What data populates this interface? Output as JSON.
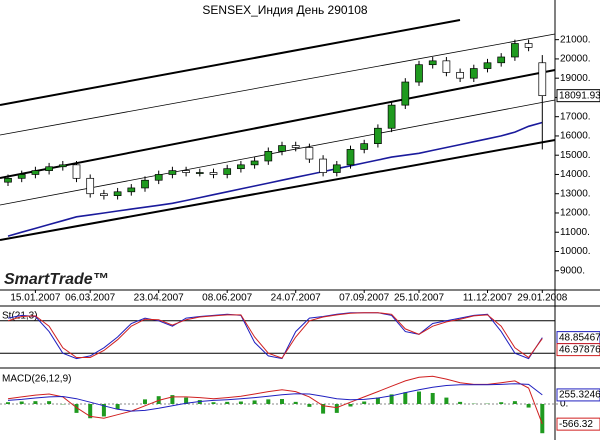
{
  "chart_data": [
    {
      "type": "candlestick",
      "title": "SENSEX_Индия День 290108",
      "logo": "SmartTrade™",
      "categories": [
        null,
        null,
        "15.01.2007",
        null,
        null,
        null,
        "06.03.2007",
        null,
        null,
        null,
        null,
        "23.04.2007",
        null,
        null,
        null,
        null,
        "08.06.2007",
        null,
        null,
        null,
        null,
        "24.07.2007",
        null,
        null,
        null,
        null,
        "07.09.2007",
        null,
        null,
        null,
        "25.10.2007",
        null,
        null,
        null,
        null,
        "11.12.2007",
        null,
        null,
        null,
        "29.01.2008"
      ],
      "open": [
        13600,
        13800,
        14000,
        14200,
        14400,
        14500,
        13800,
        13000,
        12900,
        13100,
        13300,
        13700,
        14000,
        14200,
        14100,
        14100,
        14000,
        14300,
        14500,
        14700,
        15200,
        15500,
        15400,
        14800,
        14100,
        14500,
        15300,
        15600,
        16400,
        17600,
        18800,
        19700,
        19900,
        19300,
        19000,
        19500,
        19800,
        20100,
        20800,
        19800
      ],
      "high": [
        14000,
        14200,
        14400,
        14600,
        14700,
        14700,
        14000,
        13200,
        13300,
        13500,
        13900,
        14200,
        14400,
        14400,
        14300,
        14300,
        14500,
        14700,
        14900,
        15400,
        15700,
        15700,
        15600,
        15000,
        14700,
        15500,
        15800,
        16600,
        17800,
        19000,
        19900,
        20100,
        20100,
        19500,
        19700,
        20000,
        20300,
        21000,
        21000,
        20200
      ],
      "low": [
        13400,
        13600,
        13800,
        14000,
        14200,
        13600,
        12800,
        12700,
        12700,
        12900,
        13100,
        13500,
        13800,
        13900,
        13900,
        13800,
        13800,
        14100,
        14300,
        14500,
        15000,
        15200,
        14600,
        13900,
        13900,
        14300,
        15100,
        15400,
        16200,
        17400,
        18600,
        19500,
        19100,
        18800,
        18800,
        19300,
        19600,
        19900,
        20400,
        15300
      ],
      "close": [
        13800,
        14000,
        14200,
        14400,
        14500,
        13800,
        13000,
        12900,
        13100,
        13300,
        13700,
        14000,
        14200,
        14100,
        14100,
        14000,
        14300,
        14500,
        14700,
        15200,
        15500,
        15400,
        14800,
        14100,
        14500,
        15300,
        15600,
        16400,
        17600,
        18800,
        19700,
        19900,
        19300,
        19000,
        19500,
        19800,
        20100,
        20800,
        20600,
        18091.93
      ],
      "last_value_label": "18091.93",
      "up_color": "#1f9a1f",
      "down_color": "#ffffff",
      "moving_average": {
        "color": "#1a1a9c",
        "values": [
          10800,
          11000,
          11200,
          11400,
          11600,
          11800,
          11900,
          12000,
          12100,
          12200,
          12300,
          12400,
          12500,
          12650,
          12800,
          12950,
          13100,
          13250,
          13400,
          13550,
          13700,
          13850,
          14000,
          14150,
          14300,
          14450,
          14600,
          14750,
          14900,
          15000,
          15100,
          15250,
          15400,
          15550,
          15700,
          15850,
          16000,
          16200,
          16500,
          16700
        ]
      },
      "ylim": [
        8000,
        22800
      ],
      "yticks": [
        {
          "value": 9000,
          "label": "9000."
        },
        {
          "value": 10000,
          "label": "10000."
        },
        {
          "value": 11000,
          "label": "11000."
        },
        {
          "value": 12000,
          "label": "12000."
        },
        {
          "value": 13000,
          "label": "13000."
        },
        {
          "value": 14000,
          "label": "14000."
        },
        {
          "value": 15000,
          "label": "15000."
        },
        {
          "value": 16000,
          "label": "16000."
        },
        {
          "value": 17000,
          "label": "17000."
        },
        {
          "value": 18000,
          "label": "18000."
        },
        {
          "value": 19000,
          "label": "19000."
        },
        {
          "value": 20000,
          "label": "20000."
        },
        {
          "value": 21000,
          "label": "21000."
        }
      ]
    },
    {
      "type": "line",
      "title": "St(21,3)",
      "ylim": [
        0,
        100
      ],
      "levels": [
        80,
        20
      ],
      "series": [
        {
          "color": "#2020c0",
          "last_label": "48.85467",
          "values": [
            85,
            90,
            88,
            60,
            20,
            10,
            15,
            30,
            50,
            75,
            85,
            80,
            70,
            85,
            88,
            90,
            92,
            90,
            40,
            15,
            10,
            60,
            85,
            88,
            92,
            95,
            95,
            95,
            90,
            60,
            55,
            75,
            80,
            85,
            90,
            92,
            60,
            20,
            10,
            48.85467
          ]
        },
        {
          "color": "#d02020",
          "last_label": "46.97876",
          "values": [
            80,
            88,
            89,
            70,
            30,
            12,
            12,
            25,
            45,
            70,
            83,
            82,
            72,
            82,
            87,
            89,
            91,
            91,
            50,
            20,
            11,
            50,
            80,
            87,
            91,
            94,
            95,
            95,
            92,
            65,
            55,
            70,
            78,
            83,
            89,
            91,
            70,
            30,
            12,
            46.97876
          ]
        }
      ]
    },
    {
      "type": "macd",
      "title": "MACD(26,12,9)",
      "ylim": [
        -900,
        900
      ],
      "yticks": [
        {
          "value": 0,
          "label": "0."
        }
      ],
      "series": [
        {
          "color": "#d02020",
          "last_label": "-566.32",
          "values": [
            150,
            200,
            250,
            280,
            200,
            -100,
            -350,
            -400,
            -300,
            -200,
            -50,
            100,
            200,
            200,
            180,
            150,
            180,
            220,
            280,
            350,
            400,
            350,
            200,
            -50,
            -100,
            50,
            200,
            350,
            500,
            650,
            750,
            780,
            700,
            600,
            550,
            550,
            600,
            650,
            450,
            -566.32
          ]
        },
        {
          "color": "#2020c0",
          "last_label": "255.3246",
          "values": [
            100,
            130,
            170,
            200,
            210,
            150,
            50,
            -50,
            -150,
            -200,
            -180,
            -120,
            -50,
            20,
            70,
            100,
            120,
            150,
            180,
            220,
            260,
            290,
            280,
            220,
            150,
            120,
            130,
            170,
            230,
            320,
            400,
            470,
            520,
            540,
            540,
            540,
            550,
            570,
            550,
            255.3246
          ]
        }
      ],
      "histogram": {
        "color": "#1f9a1f",
        "values": [
          50,
          70,
          80,
          80,
          -10,
          -250,
          -400,
          -350,
          -150,
          0,
          130,
          220,
          250,
          180,
          110,
          50,
          60,
          70,
          100,
          130,
          140,
          60,
          -80,
          -270,
          -250,
          -70,
          70,
          180,
          270,
          330,
          350,
          310,
          180,
          60,
          10,
          10,
          50,
          80,
          -100,
          -821.64
        ]
      }
    }
  ]
}
